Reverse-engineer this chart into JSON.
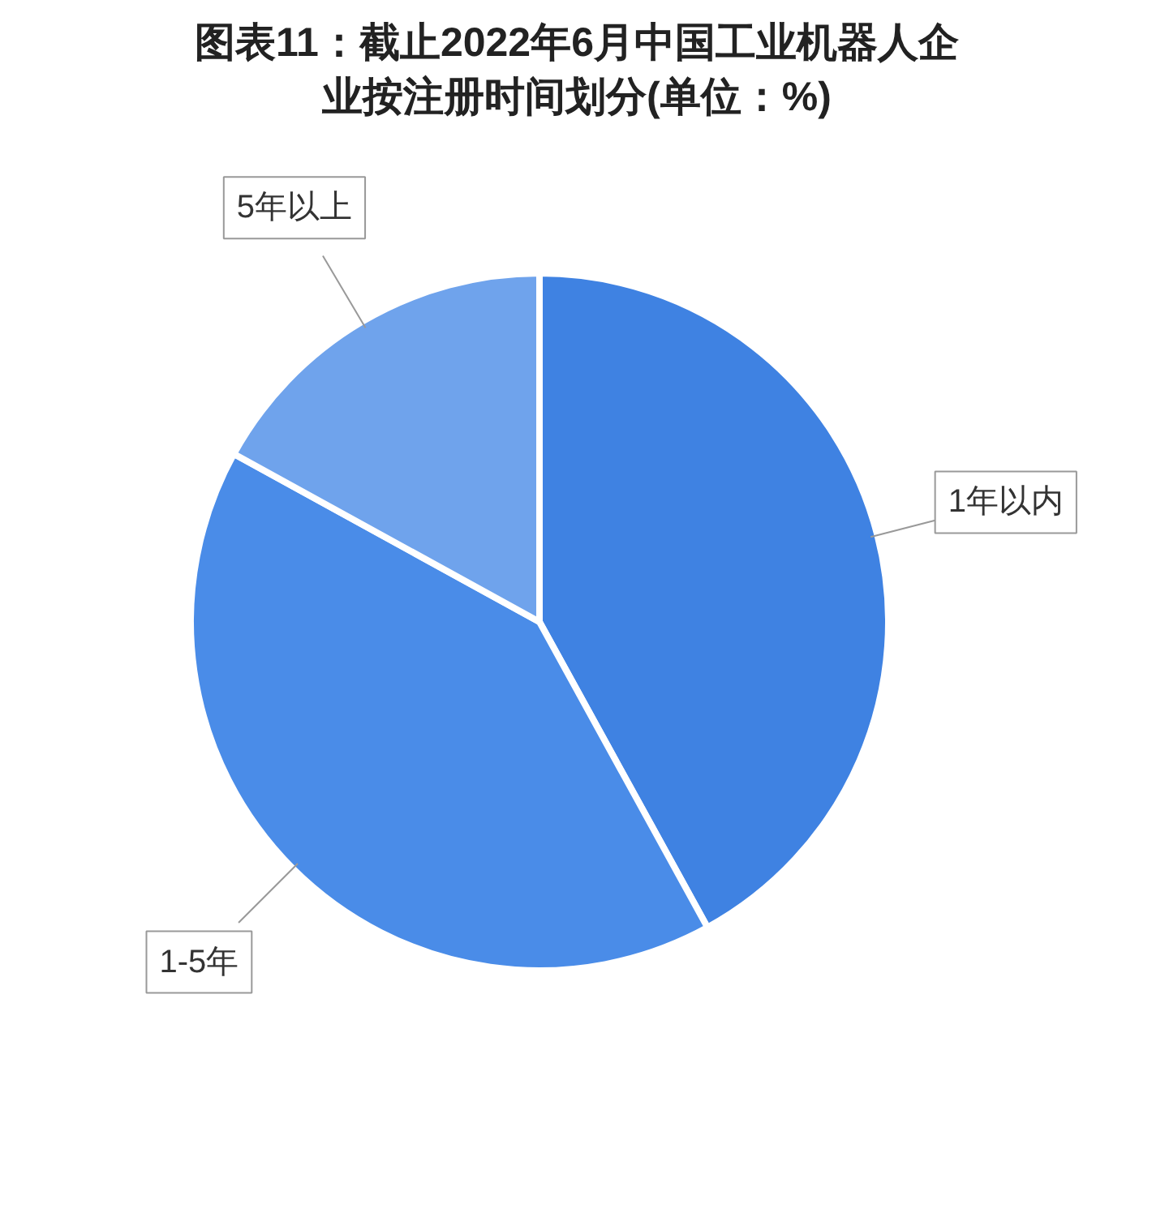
{
  "chart_data": {
    "type": "pie",
    "title": "图表11：截止2022年6月中国工业机器人企业按注册时间划分(单位：%)",
    "categories": [
      "1年以内",
      "1-5年",
      "5年以上"
    ],
    "values": [
      42,
      41,
      17
    ],
    "colors": [
      "#3f82e2",
      "#4a8ce8",
      "#6fa3ec"
    ]
  }
}
